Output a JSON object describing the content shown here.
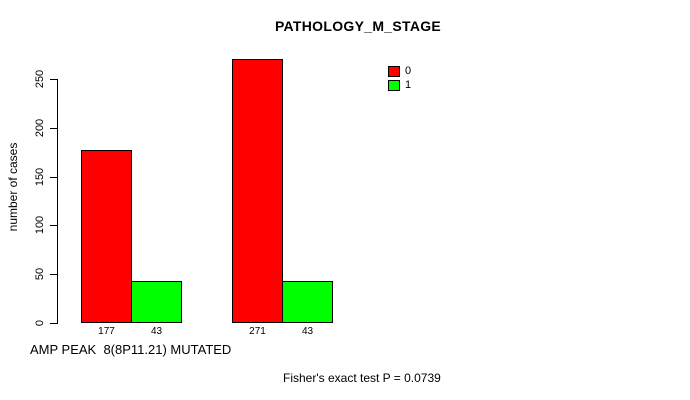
{
  "chart_data": {
    "type": "bar",
    "title": "PATHOLOGY_M_STAGE",
    "ylabel": "number of cases",
    "xlabel": "AMP PEAK  8(8P11.21) MUTATED",
    "ylim": [
      0,
      280
    ],
    "yticks": [
      0,
      50,
      100,
      150,
      200,
      250
    ],
    "grid": false,
    "legend_position": "top-right",
    "legend": [
      {
        "label": "0",
        "color": "#ff0000"
      },
      {
        "label": "1",
        "color": "#00ff00"
      }
    ],
    "series": [
      {
        "name": "0",
        "color": "#ff0000",
        "values": [
          177,
          271
        ]
      },
      {
        "name": "1",
        "color": "#00ff00",
        "values": [
          43,
          43
        ]
      }
    ],
    "annotation": "Fisher's exact test P = 0.0739"
  }
}
